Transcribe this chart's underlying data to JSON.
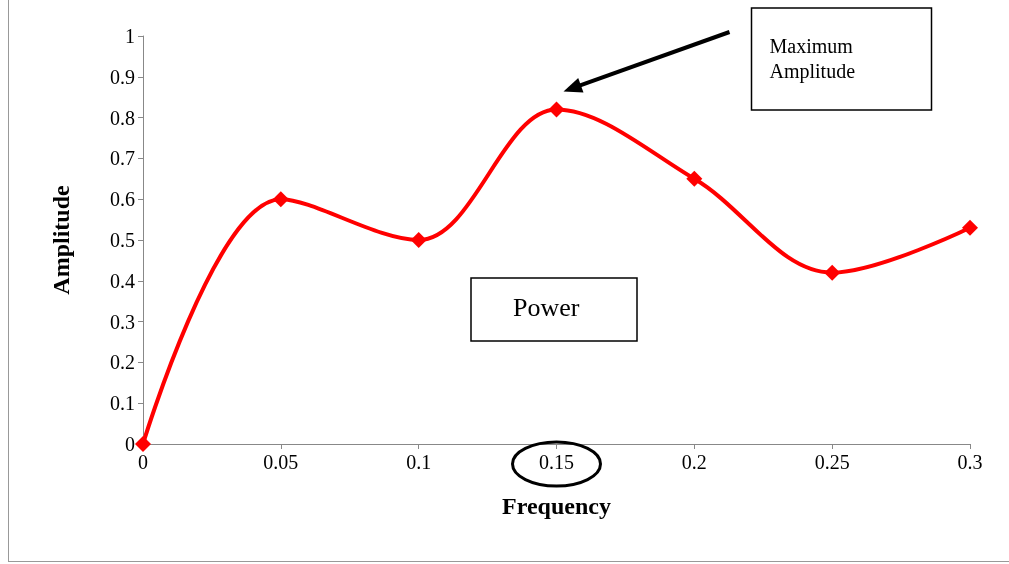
{
  "chart_data": {
    "type": "line",
    "xlabel": "Frequency",
    "ylabel": "Amplitude",
    "x": [
      0,
      0.05,
      0.1,
      0.15,
      0.2,
      0.25,
      0.3
    ],
    "series": [
      {
        "color": "#ff0000",
        "values": [
          0,
          0.6,
          0.5,
          0.82,
          0.65,
          0.42,
          0.53
        ]
      }
    ],
    "xlim": [
      0,
      0.3
    ],
    "xticks": [
      0,
      0.05,
      0.1,
      0.15,
      0.2,
      0.25,
      0.3
    ],
    "ylim": [
      0,
      1
    ],
    "yticks": [
      0,
      0.1,
      0.2,
      0.3,
      0.4,
      0.5,
      0.6,
      0.7,
      0.8,
      0.9,
      1
    ],
    "grid": false,
    "marker": "diamond",
    "line_style": "solid",
    "annotations": [
      "Maximum Amplitude",
      "Power"
    ]
  }
}
